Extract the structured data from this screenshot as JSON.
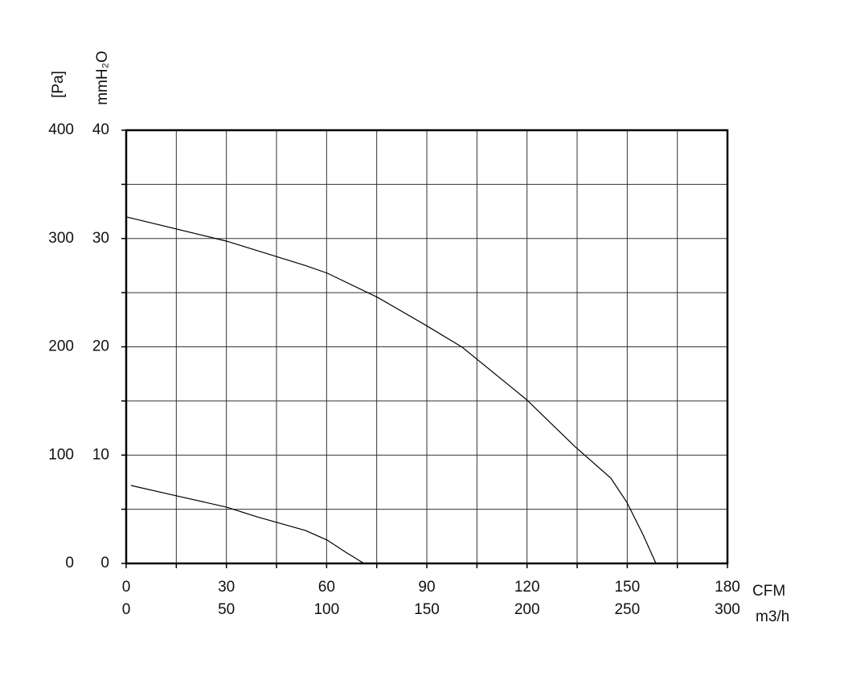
{
  "chart_data": {
    "type": "line",
    "xlabel": "CFM",
    "x2label": "m3/h",
    "ylabel": "[Pa]",
    "y2label": "mmH₂O",
    "xlim": [
      0,
      180
    ],
    "xticks": [
      0,
      30,
      60,
      90,
      120,
      150,
      180
    ],
    "xminorticks": [
      15,
      45,
      75,
      105,
      135,
      165
    ],
    "x2lim": [
      0,
      300
    ],
    "x2ticks": [
      0,
      50,
      100,
      150,
      200,
      250,
      300
    ],
    "ylim": [
      0,
      400
    ],
    "yticks": [
      0,
      100,
      200,
      300,
      400
    ],
    "yminorticks": [
      50,
      150,
      250,
      350
    ],
    "y2lim": [
      0,
      40
    ],
    "y2ticks": [
      0,
      10,
      20,
      30,
      40
    ],
    "grid": true,
    "series": [
      {
        "color": "#000000",
        "x": [
          0,
          30,
          53.7,
          60.2,
          75.3,
          89.8,
          100.6,
          119.8,
          134.3,
          145.1,
          149.9,
          154.7,
          158.6
        ],
        "values": [
          320,
          297.6,
          275,
          268,
          245.6,
          219.7,
          199.6,
          151.4,
          108,
          78.7,
          56.4,
          26.7,
          0
        ]
      },
      {
        "color": "#000000",
        "x": [
          1.4,
          15.2,
          30,
          39.2,
          53.7,
          60.2,
          65.7,
          71.2
        ],
        "values": [
          72,
          62.3,
          52,
          43,
          30.4,
          21.5,
          10.4,
          0
        ]
      }
    ]
  }
}
